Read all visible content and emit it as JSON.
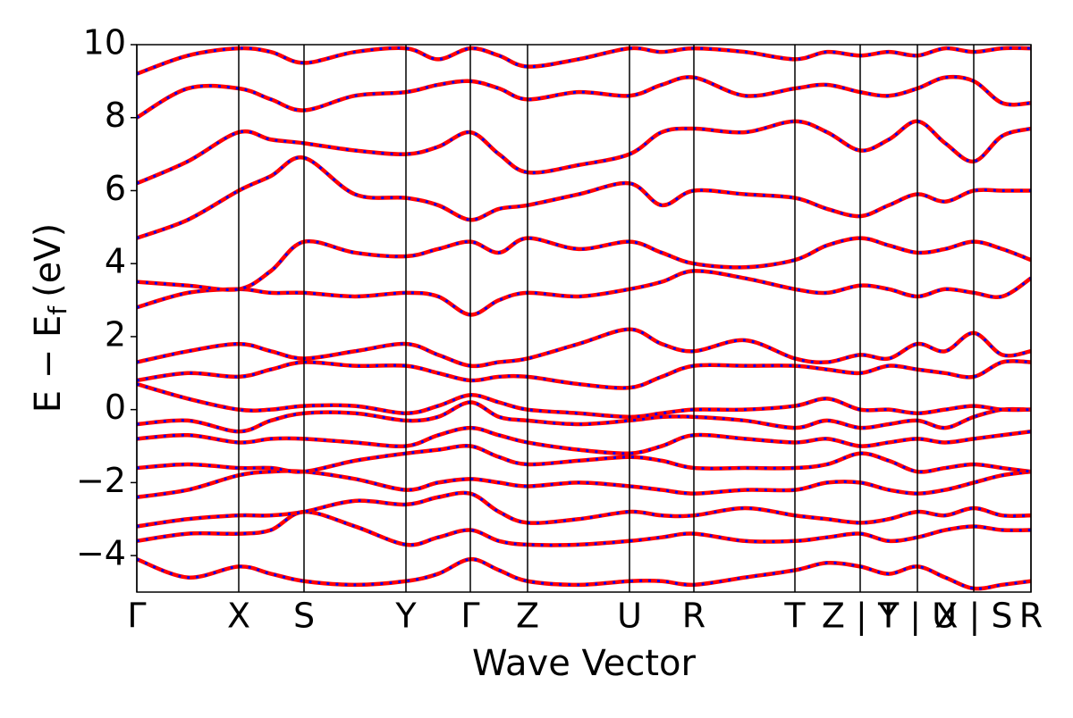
{
  "chart_data": {
    "type": "band",
    "xlabel": "Wave Vector",
    "ylabel": "E − E",
    "ylabel_sub": "f",
    "ylabel_tail": "(eV)",
    "color": "#ff0000",
    "dash_color": "#0000ff",
    "xlim": [
      0,
      1000
    ],
    "xticks": [
      {
        "value": 0,
        "label": "Γ"
      },
      {
        "value": 114,
        "label": "X"
      },
      {
        "value": 187,
        "label": "S"
      },
      {
        "value": 301,
        "label": "Y"
      },
      {
        "value": 373,
        "label": "Γ"
      },
      {
        "value": 437,
        "label": "Z"
      },
      {
        "value": 551,
        "label": "U"
      },
      {
        "value": 623,
        "label": "R"
      },
      {
        "value": 736,
        "label": "T"
      },
      {
        "value": 809,
        "label": "Z | Y"
      },
      {
        "value": 873,
        "label": "T | U"
      },
      {
        "value": 936,
        "label": "X | S"
      },
      {
        "value": 1000,
        "label": "R"
      }
    ],
    "ylim": [
      -5,
      10
    ],
    "yticks": [
      {
        "value": -4,
        "label": "−4"
      },
      {
        "value": -2,
        "label": "−2"
      },
      0,
      2,
      4,
      6,
      8,
      10
    ],
    "x": [
      0,
      57,
      114,
      150,
      187,
      244,
      301,
      337,
      373,
      405,
      437,
      494,
      551,
      587,
      623,
      680,
      736,
      772,
      809,
      841,
      873,
      904,
      936,
      968,
      1000
    ],
    "series": [
      {
        "values": [
          -4.1,
          -4.6,
          -4.3,
          -4.5,
          -4.7,
          -4.8,
          -4.7,
          -4.5,
          -4.1,
          -4.4,
          -4.7,
          -4.8,
          -4.7,
          -4.7,
          -4.8,
          -4.6,
          -4.4,
          -4.2,
          -4.3,
          -4.5,
          -4.3,
          -4.6,
          -4.9,
          -4.8,
          -4.7
        ]
      },
      {
        "values": [
          -3.6,
          -3.4,
          -3.4,
          -3.3,
          -2.8,
          -3.2,
          -3.7,
          -3.5,
          -3.3,
          -3.6,
          -3.7,
          -3.7,
          -3.6,
          -3.5,
          -3.4,
          -3.6,
          -3.6,
          -3.5,
          -3.4,
          -3.6,
          -3.5,
          -3.3,
          -3.2,
          -3.3,
          -3.3
        ]
      },
      {
        "values": [
          -3.2,
          -3.0,
          -2.9,
          -2.9,
          -2.8,
          -2.5,
          -2.6,
          -2.4,
          -2.3,
          -2.8,
          -3.1,
          -3.0,
          -2.8,
          -2.9,
          -2.9,
          -2.7,
          -2.9,
          -3.0,
          -3.1,
          -3.0,
          -2.8,
          -2.9,
          -2.7,
          -2.9,
          -2.9
        ]
      },
      {
        "values": [
          -2.4,
          -2.2,
          -1.8,
          -1.7,
          -1.7,
          -1.9,
          -2.2,
          -2.0,
          -1.9,
          -2.0,
          -2.1,
          -2.0,
          -2.1,
          -2.2,
          -2.3,
          -2.2,
          -2.2,
          -2.0,
          -2.0,
          -2.2,
          -2.3,
          -2.2,
          -2.0,
          -1.8,
          -1.7
        ]
      },
      {
        "values": [
          -1.6,
          -1.5,
          -1.6,
          -1.6,
          -1.7,
          -1.4,
          -1.2,
          -1.1,
          -1.0,
          -1.3,
          -1.5,
          -1.4,
          -1.3,
          -1.4,
          -1.6,
          -1.6,
          -1.6,
          -1.5,
          -1.2,
          -1.4,
          -1.7,
          -1.6,
          -1.5,
          -1.6,
          -1.7
        ]
      },
      {
        "values": [
          -0.8,
          -0.7,
          -0.9,
          -0.8,
          -0.8,
          -0.9,
          -1.0,
          -0.7,
          -0.5,
          -0.7,
          -0.9,
          -1.1,
          -1.2,
          -1.0,
          -0.7,
          -0.8,
          -0.9,
          -0.8,
          -1.0,
          -0.9,
          -0.8,
          -0.9,
          -0.8,
          -0.7,
          -0.6
        ]
      },
      {
        "values": [
          -0.4,
          -0.3,
          -0.6,
          -0.3,
          -0.1,
          -0.1,
          -0.3,
          -0.2,
          0.2,
          -0.2,
          -0.3,
          -0.4,
          -0.3,
          -0.2,
          -0.2,
          -0.3,
          -0.5,
          -0.3,
          -0.5,
          -0.4,
          -0.3,
          -0.5,
          -0.2,
          0.0,
          0.0
        ]
      },
      {
        "values": [
          0.7,
          0.3,
          0.0,
          0.0,
          0.1,
          0.1,
          -0.1,
          0.1,
          0.4,
          0.2,
          0.0,
          -0.1,
          -0.2,
          -0.1,
          0.0,
          0.0,
          0.1,
          0.3,
          0.0,
          0.0,
          -0.1,
          0.0,
          0.1,
          0.0,
          0.0
        ]
      },
      {
        "values": [
          0.8,
          1.0,
          0.9,
          1.1,
          1.3,
          1.2,
          1.2,
          1.0,
          0.8,
          0.9,
          0.9,
          0.7,
          0.6,
          0.9,
          1.2,
          1.2,
          1.2,
          1.1,
          1.0,
          1.2,
          1.1,
          1.0,
          0.9,
          1.3,
          1.3
        ]
      },
      {
        "values": [
          1.3,
          1.6,
          1.8,
          1.6,
          1.4,
          1.6,
          1.8,
          1.5,
          1.2,
          1.3,
          1.4,
          1.8,
          2.2,
          1.8,
          1.6,
          1.9,
          1.4,
          1.3,
          1.5,
          1.4,
          1.8,
          1.6,
          2.1,
          1.5,
          1.6
        ]
      },
      {
        "values": [
          2.8,
          3.2,
          3.3,
          3.2,
          3.2,
          3.1,
          3.2,
          3.1,
          2.6,
          3.0,
          3.2,
          3.1,
          3.3,
          3.5,
          3.8,
          3.6,
          3.3,
          3.2,
          3.4,
          3.3,
          3.1,
          3.3,
          3.2,
          3.1,
          3.6
        ]
      },
      {
        "values": [
          3.5,
          3.4,
          3.3,
          3.8,
          4.6,
          4.3,
          4.2,
          4.4,
          4.6,
          4.3,
          4.7,
          4.4,
          4.6,
          4.3,
          4.0,
          3.9,
          4.1,
          4.5,
          4.7,
          4.5,
          4.3,
          4.4,
          4.6,
          4.4,
          4.1
        ]
      },
      {
        "values": [
          4.7,
          5.2,
          6.0,
          6.4,
          6.9,
          5.9,
          5.8,
          5.6,
          5.2,
          5.5,
          5.6,
          5.9,
          6.2,
          5.6,
          6.0,
          5.9,
          5.8,
          5.5,
          5.3,
          5.6,
          5.9,
          5.7,
          6.0,
          6.0,
          6.0
        ]
      },
      {
        "values": [
          6.2,
          6.8,
          7.6,
          7.4,
          7.3,
          7.1,
          7.0,
          7.2,
          7.6,
          7.0,
          6.5,
          6.7,
          7.0,
          7.6,
          7.7,
          7.6,
          7.9,
          7.6,
          7.1,
          7.4,
          7.9,
          7.3,
          6.8,
          7.5,
          7.7
        ]
      },
      {
        "values": [
          8.0,
          8.8,
          8.8,
          8.5,
          8.2,
          8.6,
          8.7,
          8.9,
          9.0,
          8.8,
          8.5,
          8.7,
          8.6,
          8.9,
          9.1,
          8.6,
          8.8,
          8.9,
          8.7,
          8.6,
          8.8,
          9.1,
          9.0,
          8.4,
          8.4
        ]
      },
      {
        "values": [
          9.2,
          9.7,
          9.9,
          9.8,
          9.5,
          9.8,
          9.9,
          9.6,
          9.9,
          9.7,
          9.4,
          9.6,
          9.9,
          9.8,
          9.9,
          9.8,
          9.6,
          9.8,
          9.7,
          9.8,
          9.7,
          9.9,
          9.8,
          9.9,
          9.9
        ]
      }
    ]
  }
}
